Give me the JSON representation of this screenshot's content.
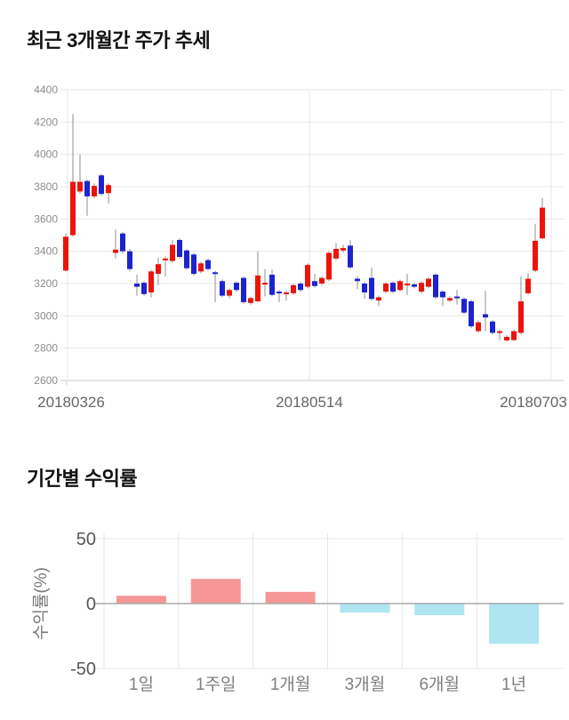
{
  "price_chart": {
    "title": "최근 3개월간 주가 추세"
  },
  "returns_chart": {
    "title": "기간별 수익률"
  },
  "chart_data": [
    {
      "type": "candlestick",
      "title": "최근 3개월간 주가 추세",
      "ylim": [
        2600,
        4400
      ],
      "y_ticks": [
        4400,
        4200,
        4000,
        3800,
        3600,
        3400,
        3200,
        3000,
        2800,
        2600
      ],
      "x_tick_labels": [
        "20180326",
        "20180514",
        "20180703"
      ],
      "grid": true,
      "colors": {
        "up": "#ec1409",
        "down": "#1c23cf",
        "wick": "#8f8f8f"
      },
      "candles_ohlc": [
        [
          3280,
          3510,
          3275,
          3490
        ],
        [
          3500,
          4250,
          3490,
          3830
        ],
        [
          3770,
          4000,
          3755,
          3830
        ],
        [
          3835,
          3845,
          3620,
          3740
        ],
        [
          3740,
          3820,
          3730,
          3805
        ],
        [
          3870,
          3880,
          3745,
          3755
        ],
        [
          3760,
          3820,
          3695,
          3810
        ],
        [
          3390,
          3535,
          3355,
          3410
        ],
        [
          3510,
          3520,
          3385,
          3400
        ],
        [
          3400,
          3415,
          3275,
          3290
        ],
        [
          3200,
          3255,
          3125,
          3180
        ],
        [
          3205,
          3215,
          3125,
          3135
        ],
        [
          3145,
          3285,
          3115,
          3275
        ],
        [
          3260,
          3360,
          3190,
          3320
        ],
        [
          3345,
          3370,
          3245,
          3355
        ],
        [
          3340,
          3470,
          3330,
          3440
        ],
        [
          3470,
          3480,
          3355,
          3365
        ],
        [
          3405,
          3415,
          3285,
          3295
        ],
        [
          3380,
          3390,
          3250,
          3260
        ],
        [
          3275,
          3335,
          3265,
          3325
        ],
        [
          3345,
          3355,
          3280,
          3290
        ],
        [
          3270,
          3280,
          3085,
          3260
        ],
        [
          3215,
          3225,
          3115,
          3125
        ],
        [
          3125,
          3170,
          3110,
          3160
        ],
        [
          3205,
          3215,
          3150,
          3160
        ],
        [
          3235,
          3245,
          3075,
          3085
        ],
        [
          3080,
          3120,
          3070,
          3110
        ],
        [
          3090,
          3400,
          3085,
          3250
        ],
        [
          3195,
          3290,
          3120,
          3205
        ],
        [
          3255,
          3285,
          3120,
          3130
        ],
        [
          3150,
          3160,
          3085,
          3140
        ],
        [
          3135,
          3155,
          3095,
          3145
        ],
        [
          3140,
          3200,
          3130,
          3190
        ],
        [
          3200,
          3210,
          3150,
          3160
        ],
        [
          3180,
          3325,
          3170,
          3315
        ],
        [
          3215,
          3260,
          3175,
          3185
        ],
        [
          3200,
          3245,
          3190,
          3235
        ],
        [
          3225,
          3400,
          3215,
          3390
        ],
        [
          3355,
          3450,
          3345,
          3415
        ],
        [
          3405,
          3440,
          3390,
          3420
        ],
        [
          3435,
          3470,
          3290,
          3300
        ],
        [
          3230,
          3245,
          3165,
          3215
        ],
        [
          3200,
          3210,
          3105,
          3145
        ],
        [
          3235,
          3300,
          3095,
          3105
        ],
        [
          3095,
          3125,
          3060,
          3115
        ],
        [
          3150,
          3210,
          3140,
          3200
        ],
        [
          3205,
          3215,
          3140,
          3150
        ],
        [
          3160,
          3225,
          3150,
          3215
        ],
        [
          3190,
          3260,
          3130,
          3200
        ],
        [
          3195,
          3205,
          3170,
          3180
        ],
        [
          3150,
          3215,
          3140,
          3205
        ],
        [
          3180,
          3240,
          3170,
          3230
        ],
        [
          3255,
          3265,
          3105,
          3115
        ],
        [
          3150,
          3160,
          3060,
          3115
        ],
        [
          3095,
          3120,
          3085,
          3110
        ],
        [
          3120,
          3160,
          3070,
          3110
        ],
        [
          3105,
          3115,
          3010,
          3020
        ],
        [
          3090,
          3100,
          2925,
          2935
        ],
        [
          2905,
          2970,
          2895,
          2960
        ],
        [
          3010,
          3155,
          2905,
          2990
        ],
        [
          2965,
          2975,
          2885,
          2895
        ],
        [
          2895,
          2915,
          2850,
          2905
        ],
        [
          2848,
          2880,
          2840,
          2870
        ],
        [
          2850,
          2915,
          2845,
          2905
        ],
        [
          2895,
          3245,
          2885,
          3090
        ],
        [
          3140,
          3265,
          3130,
          3230
        ],
        [
          3280,
          3570,
          3270,
          3465
        ],
        [
          3480,
          3730,
          3475,
          3670
        ]
      ]
    },
    {
      "type": "bar",
      "title": "기간별 수익률",
      "categories": [
        "1일",
        "1주일",
        "1개월",
        "3개월",
        "6개월",
        "1년"
      ],
      "values": [
        6,
        19,
        9,
        -7,
        -9,
        -31
      ],
      "ylabel": "수익률(%)",
      "y_ticks": [
        50,
        0,
        -50
      ],
      "ylim": [
        -50,
        50
      ],
      "grid": true,
      "legend": "none",
      "colors": {
        "positive": "#f69696",
        "negative": "#aee5f0"
      }
    }
  ],
  "style": {
    "grid_color": "#e7e7e7",
    "axis_color": "#c8c8c8",
    "zero_line_color": "#a9a9a9",
    "price_tick_color": "#8c8c8c",
    "date_label_color": "#666666",
    "bar_tick_color": "#555555",
    "bar_ylabel_color": "#777777",
    "category_color": "#7f7f7f"
  }
}
